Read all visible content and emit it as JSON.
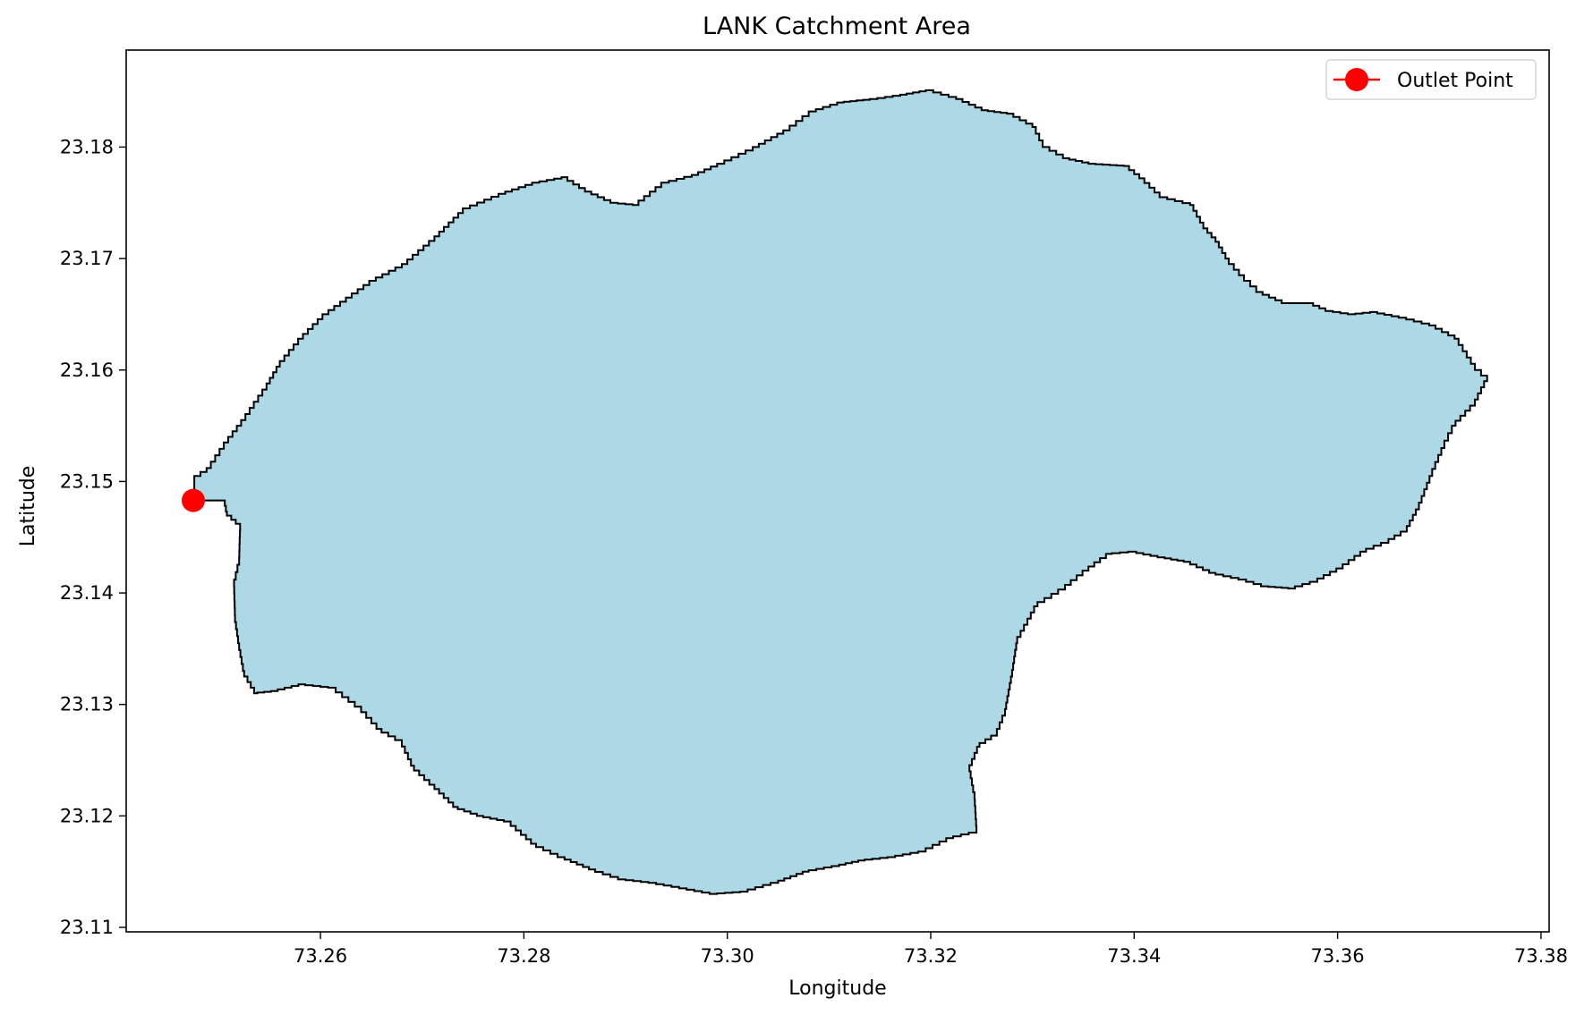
{
  "chart_data": {
    "type": "map",
    "title": "LANK Catchment Area",
    "xlabel": "Longitude",
    "ylabel": "Latitude",
    "xlim": [
      73.2409,
      73.3808
    ],
    "ylim": [
      23.1096,
      23.1887
    ],
    "xticks": [
      "73.26",
      "73.28",
      "73.30",
      "73.32",
      "73.34",
      "73.36",
      "73.38"
    ],
    "yticks": [
      "23.11",
      "23.12",
      "23.13",
      "23.14",
      "23.15",
      "23.16",
      "23.17",
      "23.18"
    ],
    "legend": {
      "placement": "top-right",
      "entries": [
        "Outlet Point"
      ]
    },
    "catchment": {
      "fill_color": "#add8e6",
      "edge_color": "#000000",
      "outline": [
        [
          73.2476,
          23.1505
        ],
        [
          73.2488,
          23.1512
        ],
        [
          73.2505,
          23.1535
        ],
        [
          73.2522,
          23.1555
        ],
        [
          73.2547,
          23.1588
        ],
        [
          73.256,
          23.1608
        ],
        [
          73.2578,
          23.1628
        ],
        [
          73.2602,
          23.165
        ],
        [
          73.2625,
          23.1665
        ],
        [
          73.2648,
          23.168
        ],
        [
          73.268,
          23.1695
        ],
        [
          73.2712,
          23.172
        ],
        [
          73.274,
          23.1745
        ],
        [
          73.2775,
          23.1758
        ],
        [
          73.2808,
          23.1768
        ],
        [
          73.2837,
          23.1773
        ],
        [
          73.286,
          23.176
        ],
        [
          73.2885,
          23.175
        ],
        [
          73.2907,
          23.1748
        ],
        [
          73.2935,
          23.1768
        ],
        [
          73.2965,
          23.1775
        ],
        [
          73.299,
          23.1785
        ],
        [
          73.3025,
          23.18
        ],
        [
          73.3055,
          23.1815
        ],
        [
          73.308,
          23.1832
        ],
        [
          73.3108,
          23.184
        ],
        [
          73.314,
          23.1843
        ],
        [
          73.317,
          23.1847
        ],
        [
          73.3195,
          23.1851
        ],
        [
          73.3225,
          23.1843
        ],
        [
          73.325,
          23.1833
        ],
        [
          73.3275,
          23.183
        ],
        [
          73.33,
          23.1818
        ],
        [
          73.331,
          23.18
        ],
        [
          73.333,
          23.179
        ],
        [
          73.3355,
          23.1785
        ],
        [
          73.339,
          23.1783
        ],
        [
          73.3405,
          23.1772
        ],
        [
          73.3425,
          23.1755
        ],
        [
          73.3455,
          23.1748
        ],
        [
          73.3468,
          23.1727
        ],
        [
          73.348,
          23.1715
        ],
        [
          73.3493,
          23.1695
        ],
        [
          73.3508,
          23.168
        ],
        [
          73.352,
          23.167
        ],
        [
          73.3545,
          23.166
        ],
        [
          73.357,
          23.166
        ],
        [
          73.3588,
          23.1653
        ],
        [
          73.361,
          23.165
        ],
        [
          73.3632,
          23.1652
        ],
        [
          73.366,
          23.1647
        ],
        [
          73.369,
          23.164
        ],
        [
          73.3715,
          23.1628
        ],
        [
          73.3735,
          23.16
        ],
        [
          73.3747,
          23.159
        ],
        [
          73.3735,
          23.1568
        ],
        [
          73.3716,
          23.155
        ],
        [
          73.3705,
          23.153
        ],
        [
          73.3693,
          23.1505
        ],
        [
          73.368,
          23.1475
        ],
        [
          73.3668,
          23.1455
        ],
        [
          73.365,
          23.1445
        ],
        [
          73.3628,
          23.1437
        ],
        [
          73.3605,
          23.1422
        ],
        [
          73.358,
          23.141
        ],
        [
          73.3558,
          23.1404
        ],
        [
          73.3532,
          23.1406
        ],
        [
          73.351,
          23.1412
        ],
        [
          73.348,
          23.1418
        ],
        [
          73.3455,
          23.1428
        ],
        [
          73.343,
          23.1432
        ],
        [
          73.3402,
          23.1437
        ],
        [
          73.3378,
          23.1435
        ],
        [
          73.3355,
          23.142
        ],
        [
          73.3332,
          23.1403
        ],
        [
          73.3305,
          23.1388
        ],
        [
          73.3285,
          23.1355
        ],
        [
          73.328,
          23.1325
        ],
        [
          73.3273,
          23.129
        ],
        [
          73.3265,
          23.1272
        ],
        [
          73.3248,
          23.1262
        ],
        [
          73.3238,
          23.124
        ],
        [
          73.3243,
          23.1215
        ],
        [
          73.3245,
          23.1185
        ],
        [
          73.3222,
          23.118
        ],
        [
          73.3195,
          23.1168
        ],
        [
          73.3165,
          23.1163
        ],
        [
          73.3135,
          23.116
        ],
        [
          73.311,
          23.1155
        ],
        [
          73.308,
          23.115
        ],
        [
          73.305,
          23.114
        ],
        [
          73.302,
          23.1132
        ],
        [
          73.299,
          23.113
        ],
        [
          73.296,
          23.1135
        ],
        [
          73.293,
          23.114
        ],
        [
          73.29,
          23.1143
        ],
        [
          73.287,
          23.1152
        ],
        [
          73.284,
          23.1163
        ],
        [
          73.2812,
          23.1175
        ],
        [
          73.2787,
          23.1195
        ],
        [
          73.276,
          23.12
        ],
        [
          73.2735,
          23.1208
        ],
        [
          73.2712,
          23.1228
        ],
        [
          73.2692,
          23.1245
        ],
        [
          73.268,
          23.1268
        ],
        [
          73.266,
          23.1278
        ],
        [
          73.264,
          23.1298
        ],
        [
          73.2615,
          23.1315
        ],
        [
          73.2585,
          23.1318
        ],
        [
          73.2558,
          23.1312
        ],
        [
          73.2538,
          23.131
        ],
        [
          73.2525,
          23.133
        ],
        [
          73.252,
          23.1355
        ],
        [
          73.2516,
          23.138
        ],
        [
          73.2515,
          23.1412
        ],
        [
          73.252,
          23.1432
        ],
        [
          73.2521,
          23.1462
        ],
        [
          73.2508,
          23.1473
        ],
        [
          73.2506,
          23.1483
        ],
        [
          73.2476,
          23.1483
        ]
      ]
    },
    "outlet_point": {
      "label": "Outlet Point",
      "color": "#ff0000",
      "lon": 73.2475,
      "lat": 23.1483
    }
  }
}
